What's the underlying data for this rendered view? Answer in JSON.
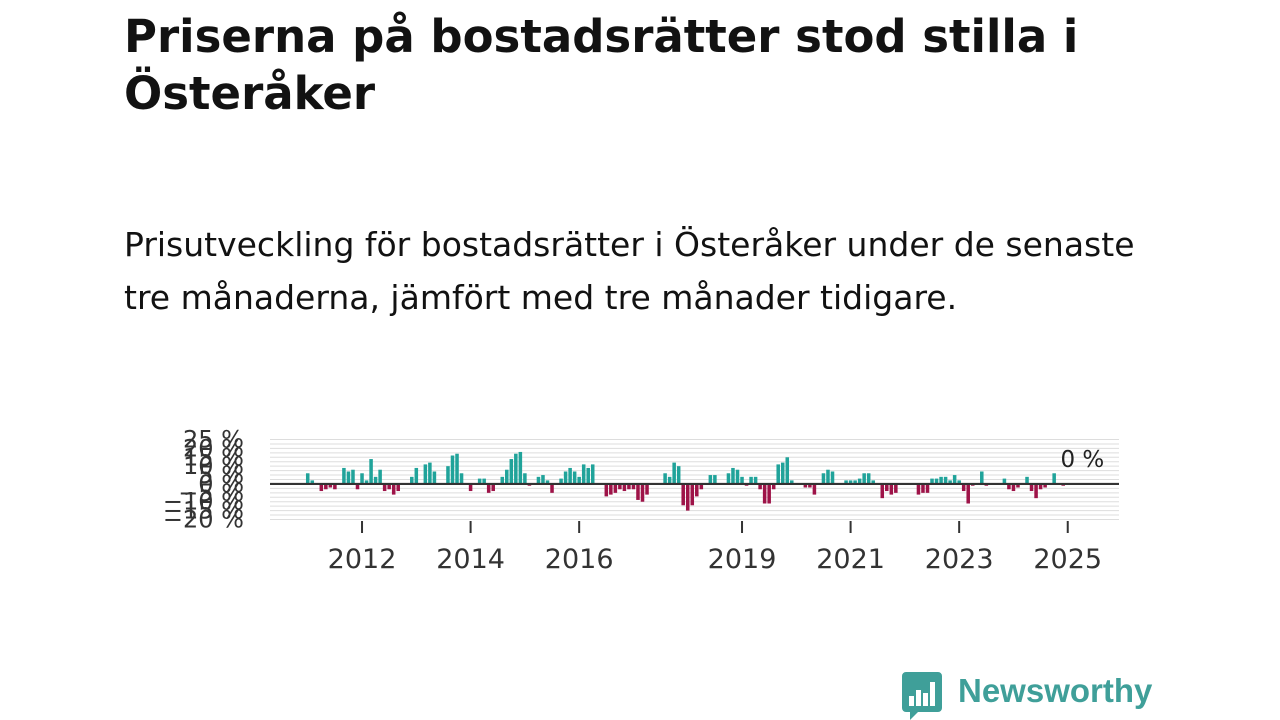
{
  "header": {
    "title": "Priserna på bostadsrätter stod stilla i Österåker",
    "subtitle": "Prisutveckling för bostadsrätter i Österåker under de senaste tre månaderna, jämfört med tre månader tidigare."
  },
  "chart_data": {
    "type": "bar",
    "title": "",
    "xlabel": "",
    "ylabel": "",
    "ylim": [
      -20,
      25
    ],
    "y_ticks": [
      "25 %",
      "20 %",
      "15 %",
      "10 %",
      "5 %",
      "0 %",
      "−5 %",
      "−10 %",
      "−15 %",
      "−20 %"
    ],
    "x_ticks": [
      "2012",
      "2014",
      "2016",
      "2019",
      "2021",
      "2023",
      "2025"
    ],
    "period": "monthly, jan 2011 – jun 2025",
    "values": [
      6,
      2,
      0,
      -4,
      -3,
      -2,
      -3,
      0,
      9,
      7,
      8,
      -3,
      6,
      2,
      14,
      4,
      8,
      -4,
      -3,
      -6,
      -4,
      0,
      0,
      4,
      9,
      0,
      11,
      12,
      7,
      0,
      0,
      10,
      16,
      17,
      6,
      0,
      -4,
      0,
      3,
      3,
      -5,
      -4,
      0,
      4,
      8,
      14,
      17,
      18,
      6,
      -1,
      0,
      4,
      5,
      2,
      -5,
      0,
      3,
      7,
      9,
      7,
      4,
      11,
      9,
      11,
      0,
      0,
      -7,
      -6,
      -5,
      -3,
      -4,
      -3,
      -3,
      -9,
      -10,
      -6,
      0,
      0,
      0,
      6,
      4,
      12,
      10,
      -12,
      -15,
      -12,
      -7,
      -3,
      0,
      5,
      5,
      0,
      0,
      6,
      9,
      8,
      4,
      -1,
      4,
      4,
      -3,
      -11,
      -11,
      -3,
      11,
      12,
      15,
      2,
      0,
      0,
      -2,
      -2,
      -6,
      0,
      6,
      8,
      7,
      0,
      0,
      2,
      2,
      2,
      3,
      6,
      6,
      2,
      0,
      -8,
      -4,
      -6,
      -5,
      0,
      0,
      0,
      0,
      -6,
      -5,
      -5,
      3,
      3,
      4,
      4,
      2,
      5,
      2,
      -4,
      -11,
      -1,
      0,
      7,
      -1,
      0,
      0,
      0,
      3,
      -3,
      -4,
      -2,
      0,
      4,
      -4,
      -8,
      -3,
      -2,
      0,
      6,
      0,
      -1,
      0,
      0
    ],
    "last_value_label": "0 %",
    "colors": {
      "positive": "#20a39a",
      "negative": "#9e1348",
      "zero_line": "#333333",
      "grid": "#dddddd"
    }
  },
  "logo": {
    "text": "Newsworthy",
    "icon": "newsworthy-chart-icon",
    "color": "#3f9f99"
  }
}
